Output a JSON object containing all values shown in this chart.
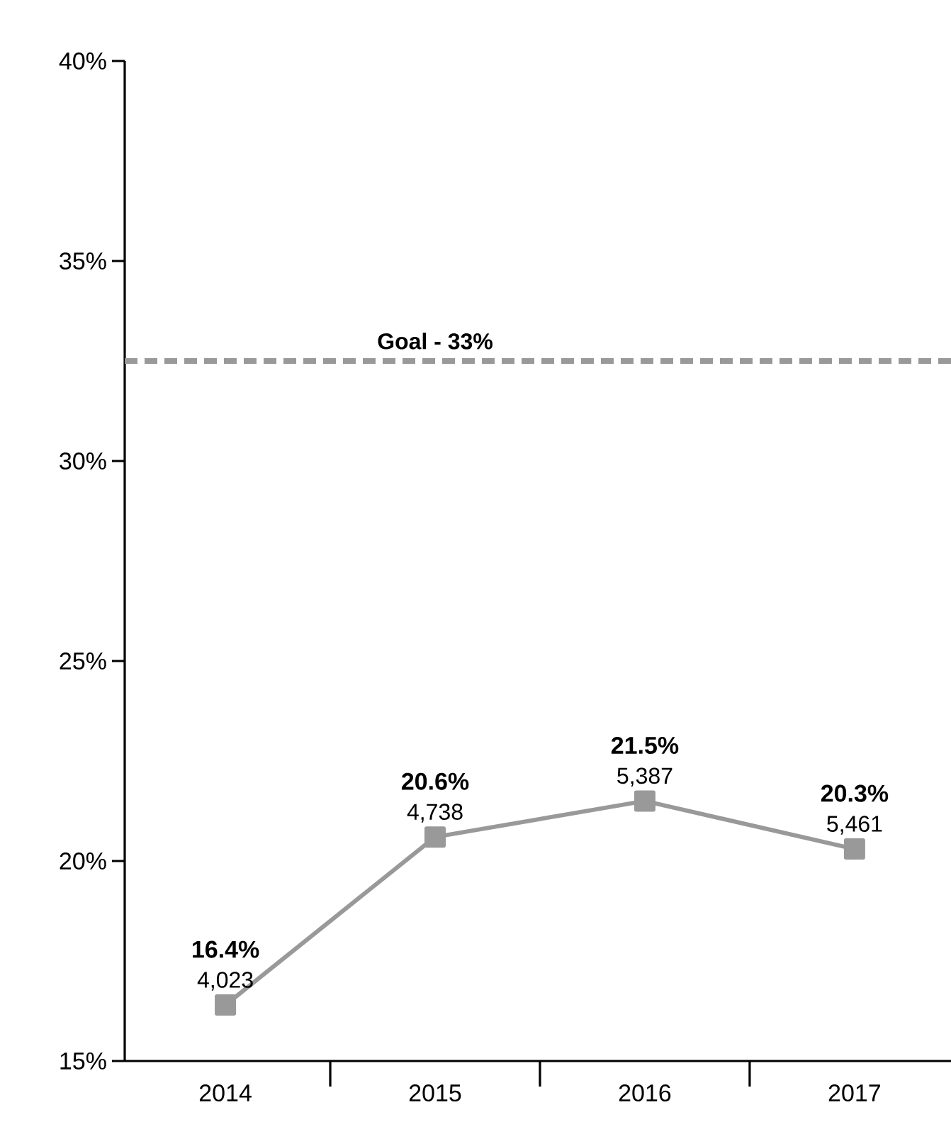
{
  "chart_data": {
    "type": "line",
    "categories": [
      "2014",
      "2015",
      "2016",
      "2017"
    ],
    "values": [
      16.4,
      20.6,
      21.5,
      20.3
    ],
    "value_labels": [
      "**16.4%**",
      "**20.6%**",
      "**21.5%**",
      "**20.3%**"
    ],
    "color": "#999999",
    "marker": "square",
    "line_style": "solid",
    "ylim": [
      15,
      40
    ],
    "yticks": [
      {
        "value": 15,
        "label": "15%"
      },
      {
        "value": 20,
        "label": "20%"
      },
      {
        "value": 25,
        "label": "25%"
      },
      {
        "value": 30,
        "label": "30%"
      },
      {
        "value": 35,
        "label": "35%"
      },
      {
        "value": 40,
        "label": "40%"
      }
    ],
    "ref_lines": [
      {
        "axis": "y",
        "value": 32.5,
        "label": "**Goal - 33%**",
        "color": "#999999",
        "line_style": "dashed"
      }
    ],
    "annotations": [
      {
        "text": "4,023",
        "x": "2014",
        "y": 16.4
      },
      {
        "text": "4,738",
        "x": "2015",
        "y": 20.6
      },
      {
        "text": "5,387",
        "x": "2016",
        "y": 21.5
      },
      {
        "text": "5,461",
        "x": "2017",
        "y": 20.3
      }
    ]
  }
}
